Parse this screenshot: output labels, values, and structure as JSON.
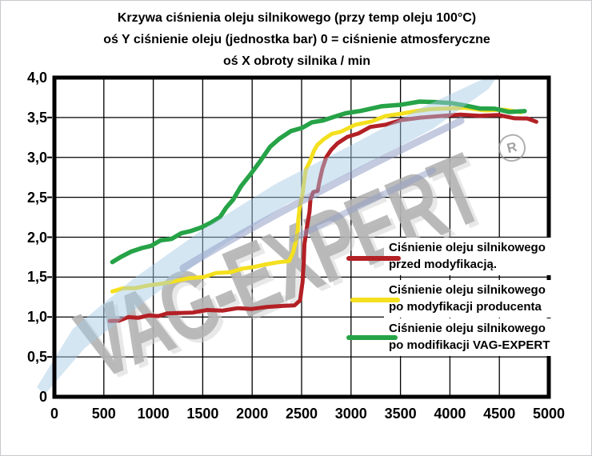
{
  "title": {
    "line1": "Krzywa ciśnienia oleju silnikowego (przy temp oleju 100°C)",
    "line2": "oś Y ciśnienie oleju (jednostka bar) 0 = ciśnienie atmosferyczne",
    "line3": "oś X obroty silnika / min"
  },
  "watermark": {
    "text": "VAG-EXPERT",
    "registered_mark": "R",
    "swoosh_color": "#a7cbe6",
    "swoosh_color2": "#93a0c6",
    "text_color": "#b2b2b2"
  },
  "legend": {
    "items": [
      {
        "color": "#b32025",
        "line1": "Ciśnienie oleju silnikowego",
        "line2": "przed modyfikacją."
      },
      {
        "color": "#f4e01e",
        "line1": "Ciśnienie oleju silnikowego",
        "line2": "po modyfikacji producenta"
      },
      {
        "color": "#26a347",
        "line1": "Ciśnienie oleju silnikowego",
        "line2": "po modifikacji VAG-EXPERT"
      }
    ]
  },
  "chart_data": {
    "type": "line",
    "title": "Krzywa ciśnienia oleju silnikowego (przy temp oleju 100°C)",
    "subtitle": "oś Y ciśnienie oleju (jednostka bar) 0 = ciśnienie atmosferyczne; oś X obroty silnika / min",
    "xlabel": "obroty silnika / min",
    "ylabel": "ciśnienie oleju (bar), 0 = ciśnienie atmosferyczne",
    "xlim": [
      0,
      5000
    ],
    "ylim": [
      0,
      4
    ],
    "x_ticks": [
      0,
      500,
      1000,
      1500,
      2000,
      2500,
      3000,
      3500,
      4000,
      4500,
      5000
    ],
    "x_tick_labels": [
      "0",
      "500",
      "1000",
      "1500",
      "2000",
      "2500",
      "3000",
      "3500",
      "4000",
      "4500",
      "5000"
    ],
    "y_ticks": [
      0,
      0.5,
      1.0,
      1.5,
      2.0,
      2.5,
      3.0,
      3.5,
      4.0
    ],
    "y_tick_labels": [
      "0",
      "0,5",
      "1,0",
      "1,5",
      "2,0",
      "2,5",
      "3,0",
      "3,5",
      "4,0"
    ],
    "grid": true,
    "legend_position": "inside-right-middle",
    "series": [
      {
        "name": "Ciśnienie oleju silnikowego przed modyfikacją.",
        "color": "#b32025",
        "stroke_width": 5,
        "points": [
          [
            560,
            0.95
          ],
          [
            650,
            0.96
          ],
          [
            750,
            0.99
          ],
          [
            850,
            1.0
          ],
          [
            950,
            1.01
          ],
          [
            1050,
            1.02
          ],
          [
            1150,
            1.04
          ],
          [
            1250,
            1.05
          ],
          [
            1400,
            1.06
          ],
          [
            1550,
            1.08
          ],
          [
            1700,
            1.09
          ],
          [
            1850,
            1.1
          ],
          [
            2000,
            1.11
          ],
          [
            2150,
            1.12
          ],
          [
            2300,
            1.14
          ],
          [
            2430,
            1.15
          ],
          [
            2490,
            1.2
          ],
          [
            2505,
            1.45
          ],
          [
            2520,
            1.7
          ],
          [
            2535,
            1.92
          ],
          [
            2555,
            2.14
          ],
          [
            2575,
            2.32
          ],
          [
            2595,
            2.48
          ],
          [
            2620,
            2.56
          ],
          [
            2655,
            2.59
          ],
          [
            2685,
            2.7
          ],
          [
            2715,
            2.87
          ],
          [
            2745,
            3.0
          ],
          [
            2800,
            3.1
          ],
          [
            2870,
            3.18
          ],
          [
            2960,
            3.25
          ],
          [
            3070,
            3.31
          ],
          [
            3200,
            3.37
          ],
          [
            3350,
            3.42
          ],
          [
            3500,
            3.46
          ],
          [
            3700,
            3.5
          ],
          [
            3900,
            3.52
          ],
          [
            4100,
            3.53
          ],
          [
            4300,
            3.53
          ],
          [
            4500,
            3.52
          ],
          [
            4650,
            3.5
          ],
          [
            4780,
            3.48
          ],
          [
            4880,
            3.45
          ]
        ]
      },
      {
        "name": "Ciśnienie oleju silnikowego po modyfikacji producenta",
        "color": "#f4e01e",
        "stroke_width": 5,
        "points": [
          [
            580,
            1.33
          ],
          [
            700,
            1.35
          ],
          [
            820,
            1.37
          ],
          [
            950,
            1.39
          ],
          [
            1080,
            1.42
          ],
          [
            1220,
            1.45
          ],
          [
            1360,
            1.48
          ],
          [
            1500,
            1.51
          ],
          [
            1640,
            1.54
          ],
          [
            1780,
            1.57
          ],
          [
            1900,
            1.6
          ],
          [
            2020,
            1.63
          ],
          [
            2140,
            1.66
          ],
          [
            2260,
            1.68
          ],
          [
            2370,
            1.71
          ],
          [
            2420,
            1.8
          ],
          [
            2440,
            1.95
          ],
          [
            2455,
            2.08
          ],
          [
            2470,
            2.22
          ],
          [
            2485,
            2.38
          ],
          [
            2505,
            2.55
          ],
          [
            2525,
            2.7
          ],
          [
            2550,
            2.84
          ],
          [
            2580,
            2.96
          ],
          [
            2620,
            3.07
          ],
          [
            2665,
            3.16
          ],
          [
            2725,
            3.23
          ],
          [
            2800,
            3.29
          ],
          [
            2900,
            3.33
          ],
          [
            3050,
            3.4
          ],
          [
            3200,
            3.46
          ],
          [
            3350,
            3.51
          ],
          [
            3500,
            3.55
          ],
          [
            3650,
            3.58
          ],
          [
            3800,
            3.6
          ],
          [
            3950,
            3.62
          ],
          [
            4150,
            3.61
          ],
          [
            4350,
            3.6
          ],
          [
            4550,
            3.59
          ],
          [
            4720,
            3.57
          ]
        ]
      },
      {
        "name": "Ciśnienie oleju silnikowego po modifikacji VAG-EXPERT",
        "color": "#26a347",
        "stroke_width": 5.5,
        "points": [
          [
            580,
            1.68
          ],
          [
            680,
            1.76
          ],
          [
            780,
            1.82
          ],
          [
            880,
            1.86
          ],
          [
            980,
            1.9
          ],
          [
            1080,
            1.95
          ],
          [
            1180,
            1.99
          ],
          [
            1280,
            2.04
          ],
          [
            1380,
            2.08
          ],
          [
            1480,
            2.12
          ],
          [
            1580,
            2.18
          ],
          [
            1680,
            2.26
          ],
          [
            1740,
            2.36
          ],
          [
            1800,
            2.48
          ],
          [
            1890,
            2.63
          ],
          [
            1980,
            2.78
          ],
          [
            2080,
            2.96
          ],
          [
            2180,
            3.13
          ],
          [
            2280,
            3.24
          ],
          [
            2390,
            3.32
          ],
          [
            2500,
            3.38
          ],
          [
            2610,
            3.43
          ],
          [
            2720,
            3.47
          ],
          [
            2830,
            3.51
          ],
          [
            2950,
            3.55
          ],
          [
            3100,
            3.59
          ],
          [
            3300,
            3.63
          ],
          [
            3500,
            3.67
          ],
          [
            3700,
            3.69
          ],
          [
            3850,
            3.7
          ],
          [
            4000,
            3.68
          ],
          [
            4150,
            3.65
          ],
          [
            4300,
            3.62
          ],
          [
            4450,
            3.6
          ],
          [
            4600,
            3.58
          ],
          [
            4760,
            3.57
          ]
        ]
      }
    ]
  }
}
